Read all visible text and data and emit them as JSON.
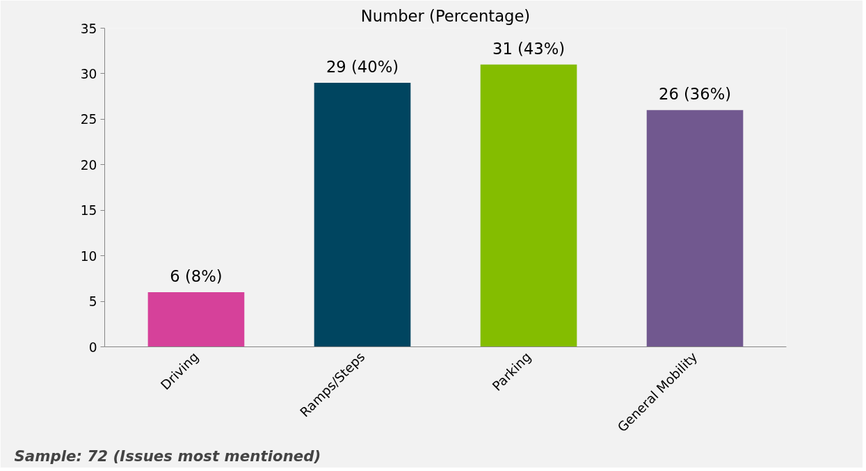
{
  "chart_data": {
    "type": "bar",
    "title": "Number (Percentage)",
    "categories": [
      "Driving",
      "Ramps/Steps",
      "Parking",
      "General Mobility"
    ],
    "values": [
      6,
      29,
      31,
      26
    ],
    "colors": [
      "#d6419a",
      "#004560",
      "#84bd00",
      "#71588f"
    ],
    "value_labels": [
      "6 (8%)",
      "29 (40%)",
      "31 (43%)",
      "26 (36%)"
    ],
    "ylim": [
      0,
      35
    ],
    "yticks": [
      0,
      5,
      10,
      15,
      20,
      25,
      30,
      35
    ],
    "grid": false,
    "annotations": [
      "Sample: 72 (Issues most mentioned)"
    ]
  }
}
